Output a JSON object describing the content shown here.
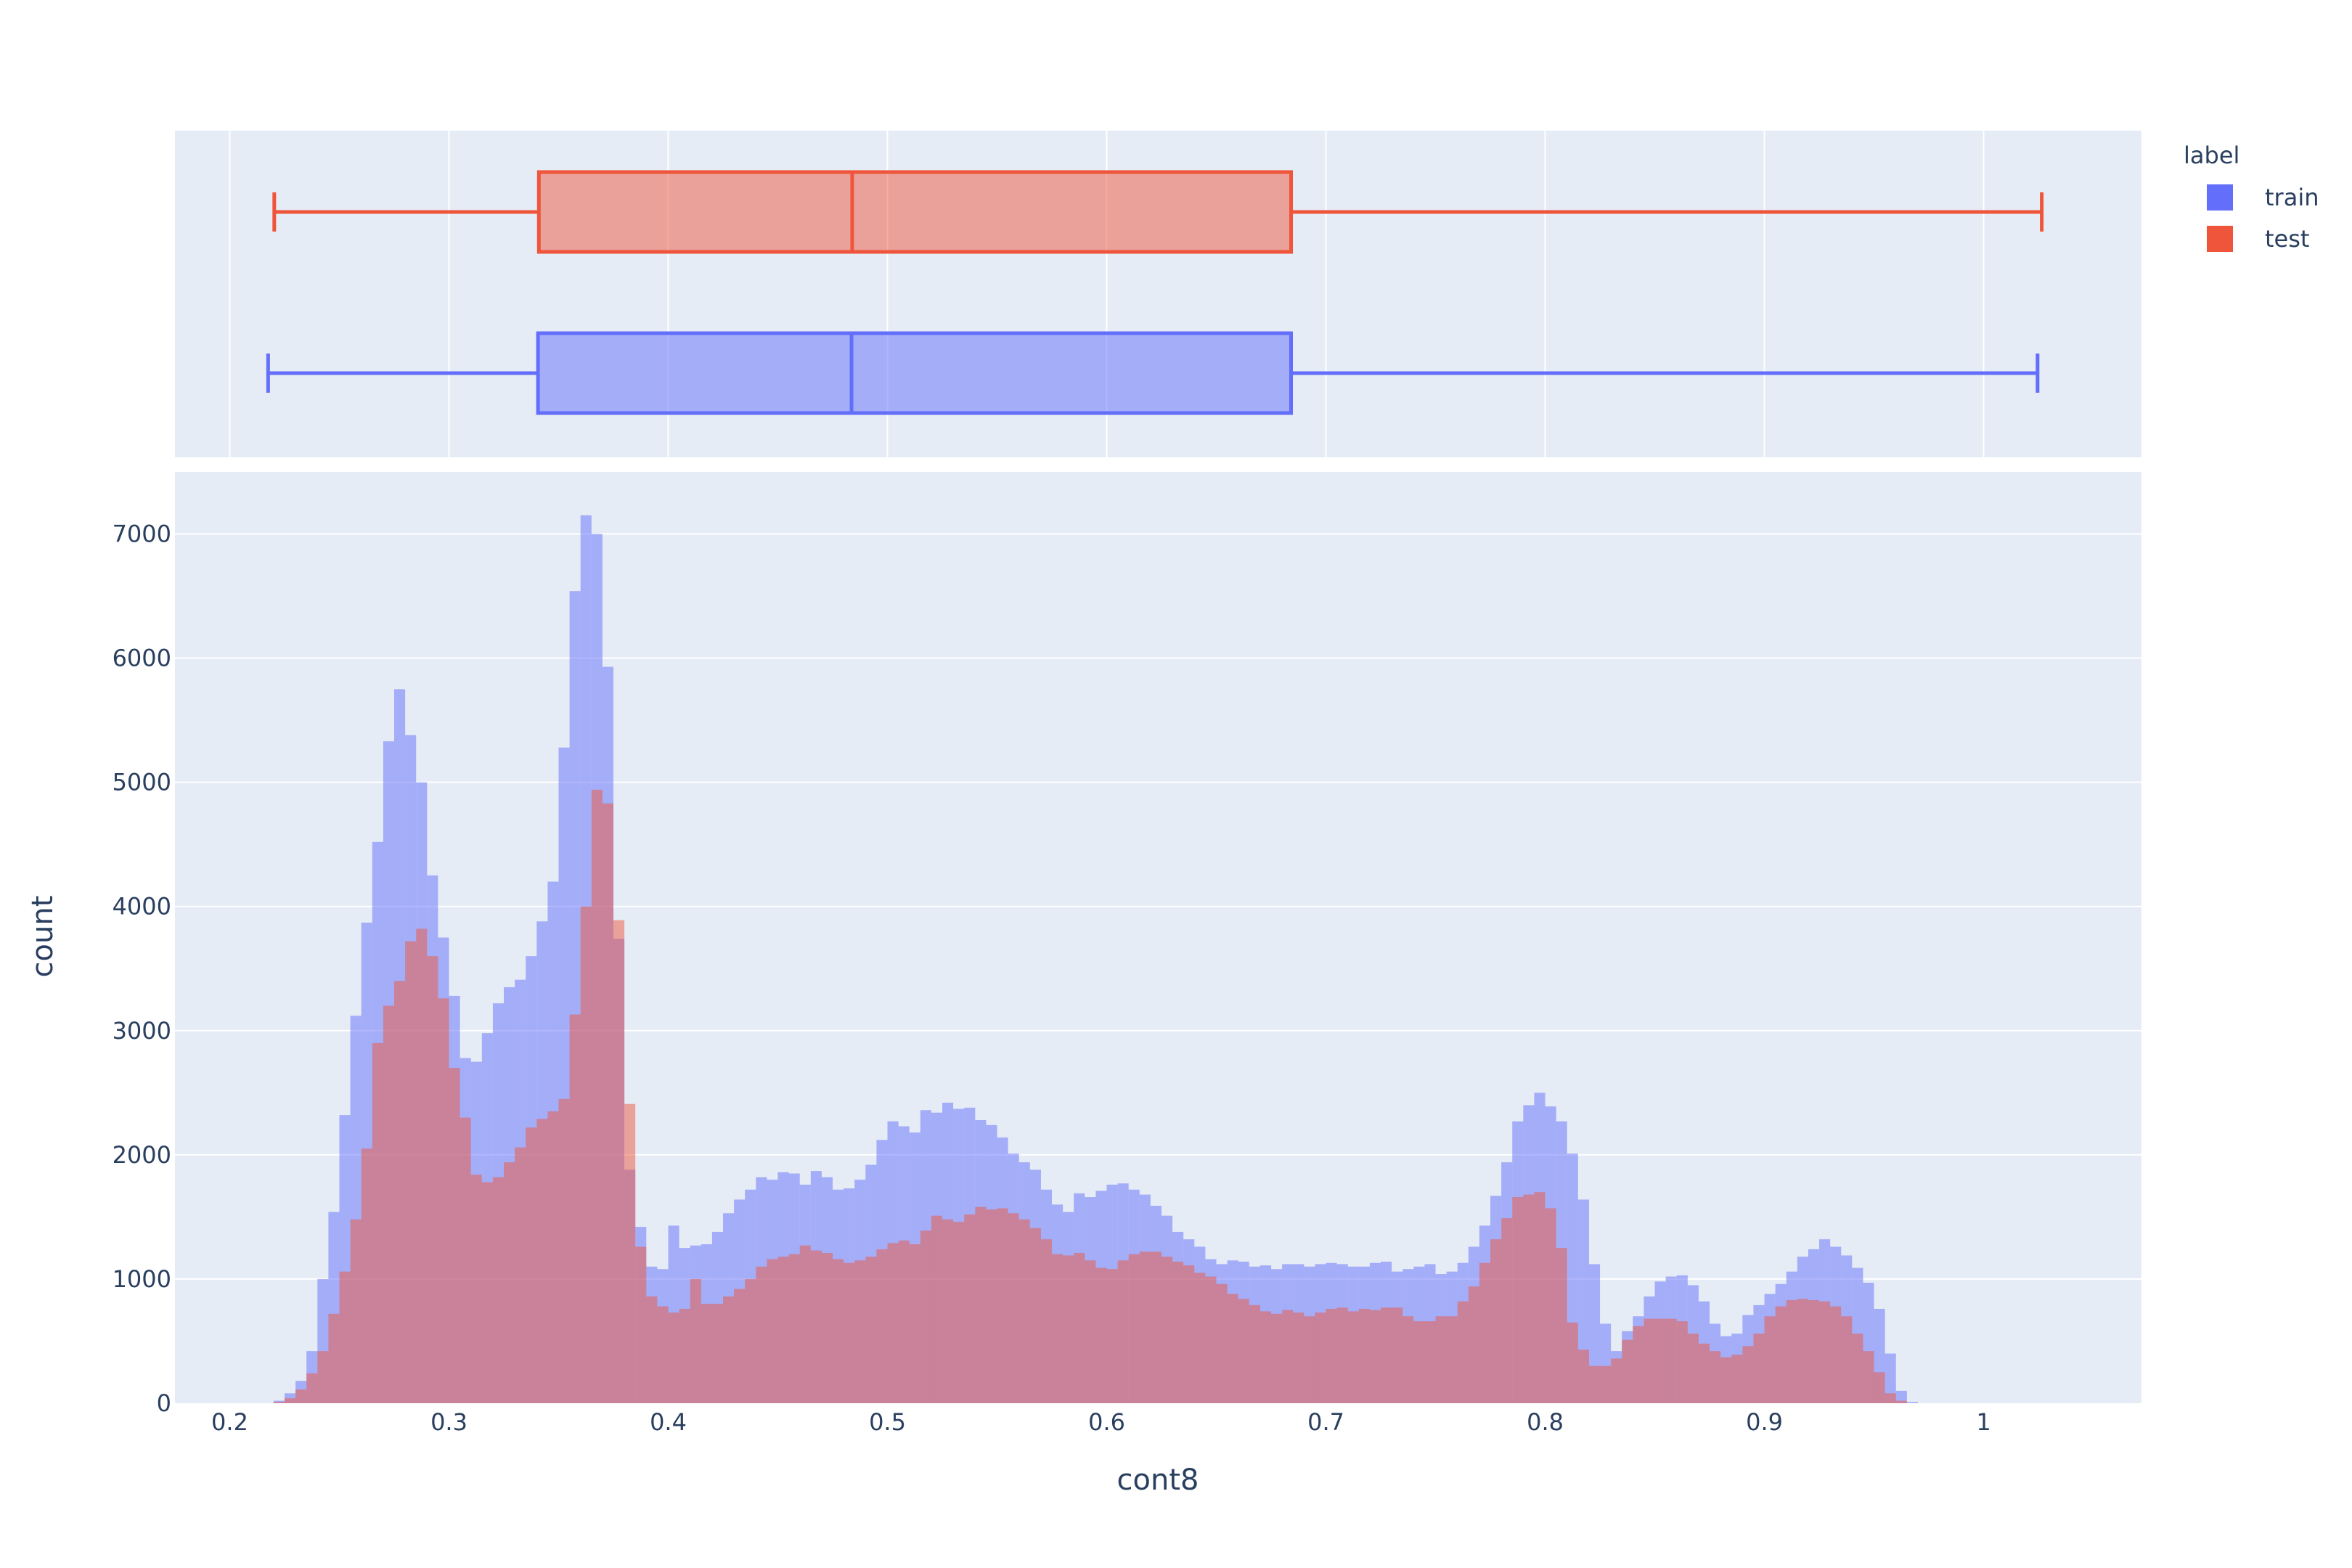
{
  "chart_data": {
    "type": "histogram",
    "xlabel": "cont8",
    "ylabel": "count",
    "xlim": [
      0.175,
      1.072
    ],
    "ylim": [
      0,
      7500
    ],
    "x_ticks": [
      0.2,
      0.3,
      0.4,
      0.5,
      0.6,
      0.7,
      0.8,
      0.9,
      1.0
    ],
    "x_tick_labels": [
      "0.2",
      "0.3",
      "0.4",
      "0.5",
      "0.6",
      "0.7",
      "0.8",
      "0.9",
      "1"
    ],
    "y_ticks": [
      0,
      1000,
      2000,
      3000,
      4000,
      5000,
      6000,
      7000
    ],
    "y_tick_labels": [
      "0",
      "1000",
      "2000",
      "3000",
      "4000",
      "5000",
      "6000",
      "7000"
    ],
    "grid": true,
    "legend": {
      "title": "label",
      "position": "top-right"
    },
    "bin_start": 0.215,
    "bin_width": 0.005,
    "series": [
      {
        "name": "train",
        "color": "#636efa",
        "values": [
          0,
          20,
          80,
          180,
          420,
          1000,
          1540,
          2320,
          3120,
          3870,
          4520,
          5330,
          5750,
          5380,
          5000,
          4250,
          3750,
          3280,
          2780,
          2750,
          2980,
          3220,
          3350,
          3410,
          3600,
          3880,
          4200,
          5280,
          6540,
          7150,
          7000,
          5930,
          3740,
          1880,
          1420,
          1100,
          1080,
          1430,
          1250,
          1270,
          1280,
          1380,
          1530,
          1640,
          1720,
          1820,
          1800,
          1860,
          1850,
          1760,
          1870,
          1820,
          1720,
          1730,
          1800,
          1920,
          2120,
          2270,
          2230,
          2180,
          2360,
          2340,
          2420,
          2370,
          2380,
          2280,
          2240,
          2140,
          2010,
          1940,
          1880,
          1720,
          1600,
          1540,
          1690,
          1660,
          1710,
          1760,
          1770,
          1720,
          1680,
          1590,
          1510,
          1380,
          1320,
          1260,
          1160,
          1120,
          1150,
          1140,
          1100,
          1110,
          1080,
          1120,
          1120,
          1100,
          1120,
          1130,
          1120,
          1100,
          1100,
          1130,
          1140,
          1060,
          1080,
          1100,
          1120,
          1040,
          1060,
          1130,
          1260,
          1430,
          1670,
          1940,
          2270,
          2400,
          2500,
          2390,
          2270,
          2010,
          1640,
          1120,
          640,
          420,
          580,
          700,
          860,
          980,
          1020,
          1030,
          950,
          820,
          640,
          540,
          560,
          710,
          790,
          880,
          960,
          1060,
          1180,
          1240,
          1320,
          1260,
          1190,
          1090,
          970,
          760,
          400,
          100,
          10,
          0,
          0,
          0
        ]
      },
      {
        "name": "test",
        "color": "#ef553b",
        "values": [
          0,
          10,
          40,
          110,
          240,
          420,
          720,
          1060,
          1480,
          2050,
          2900,
          3200,
          3400,
          3720,
          3820,
          3600,
          3260,
          2700,
          2300,
          1840,
          1780,
          1820,
          1940,
          2060,
          2220,
          2290,
          2350,
          2450,
          3130,
          4000,
          4940,
          4830,
          3890,
          2410,
          1260,
          860,
          780,
          730,
          760,
          1000,
          800,
          800,
          860,
          920,
          1000,
          1100,
          1160,
          1180,
          1200,
          1270,
          1230,
          1210,
          1160,
          1130,
          1150,
          1180,
          1240,
          1290,
          1310,
          1280,
          1390,
          1510,
          1480,
          1460,
          1520,
          1580,
          1560,
          1570,
          1530,
          1480,
          1410,
          1320,
          1200,
          1190,
          1210,
          1150,
          1090,
          1080,
          1150,
          1200,
          1220,
          1220,
          1180,
          1140,
          1110,
          1050,
          1020,
          960,
          880,
          840,
          790,
          740,
          720,
          750,
          730,
          700,
          730,
          760,
          770,
          740,
          760,
          750,
          770,
          770,
          700,
          660,
          660,
          700,
          700,
          820,
          940,
          1130,
          1320,
          1490,
          1660,
          1680,
          1700,
          1570,
          1250,
          650,
          430,
          300,
          300,
          360,
          510,
          620,
          680,
          680,
          680,
          660,
          560,
          480,
          420,
          370,
          390,
          460,
          560,
          700,
          780,
          830,
          840,
          830,
          820,
          780,
          700,
          560,
          420,
          250,
          80,
          20,
          0,
          0,
          0
        ]
      }
    ],
    "box": [
      {
        "name": "train",
        "color": "#636efa",
        "lowerfence": 0.2175,
        "q1": 0.3406,
        "median": 0.4836,
        "q3": 0.6841,
        "upperfence": 1.0246
      },
      {
        "name": "test",
        "color": "#ef553b",
        "lowerfence": 0.2203,
        "q1": 0.341,
        "median": 0.4839,
        "q3": 0.6841,
        "upperfence": 1.0265
      }
    ]
  }
}
